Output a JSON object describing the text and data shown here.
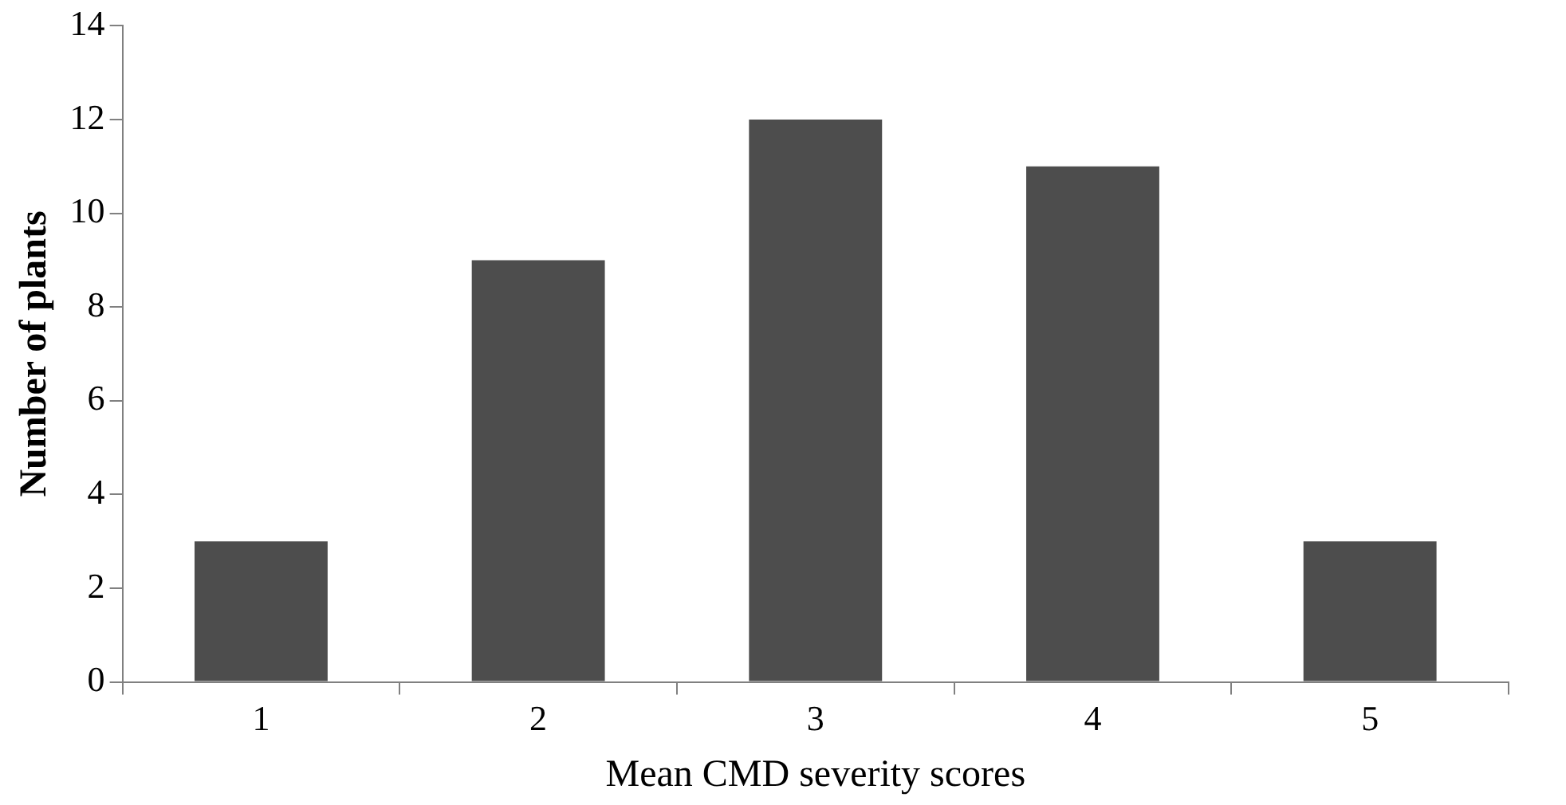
{
  "chart_data": {
    "type": "bar",
    "xlabel": "Mean CMD severity scores",
    "ylabel": "Number of plants",
    "categories": [
      "1",
      "2",
      "3",
      "4",
      "5"
    ],
    "values": [
      3,
      9,
      12,
      11,
      3
    ],
    "color": "#4d4d4d",
    "ylim": [
      0,
      14
    ],
    "yticks": [
      0,
      2,
      4,
      6,
      8,
      10,
      12,
      14
    ],
    "grid": false
  }
}
